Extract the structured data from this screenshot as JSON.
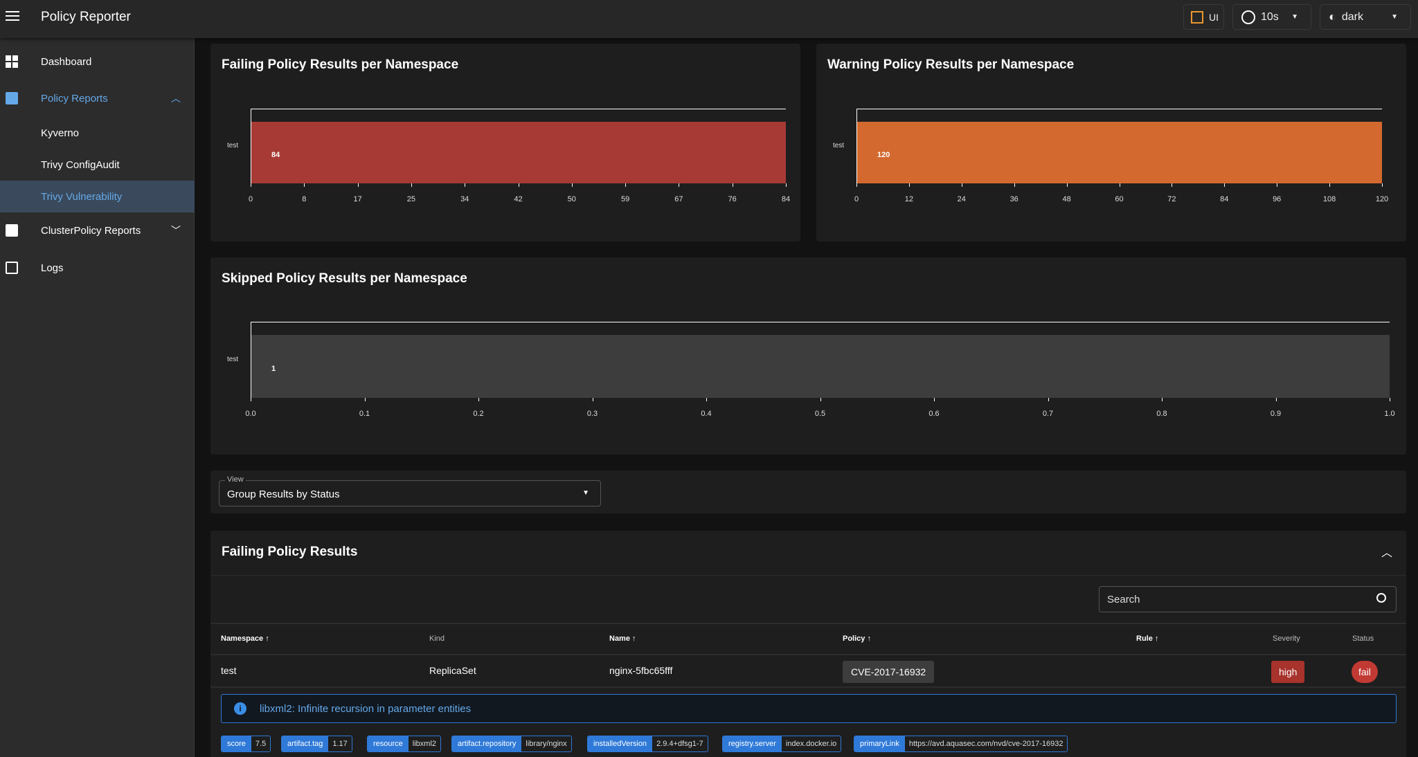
{
  "header": {
    "title": "Policy Reporter",
    "ui_label": "UI",
    "interval": "10s",
    "theme": "dark"
  },
  "sidebar": {
    "items": [
      {
        "label": "Dashboard",
        "icon": "dashboard-icon"
      },
      {
        "label": "Policy Reports",
        "icon": "report-icon",
        "expanded": true
      },
      {
        "label": "Kyverno"
      },
      {
        "label": "Trivy ConfigAudit"
      },
      {
        "label": "Trivy Vulnerability",
        "selected": true
      },
      {
        "label": "ClusterPolicy Reports",
        "icon": "report-icon",
        "expanded": false
      },
      {
        "label": "Logs",
        "icon": "terminal-icon"
      }
    ]
  },
  "chart_data": [
    {
      "type": "bar",
      "orientation": "horizontal",
      "title": "Failing Policy Results per Namespace",
      "categories": [
        "test"
      ],
      "values": [
        84
      ],
      "xlim": [
        0,
        84
      ],
      "xticks": [
        "0",
        "8",
        "17",
        "25",
        "34",
        "42",
        "50",
        "59",
        "67",
        "76",
        "84"
      ],
      "color": "#a83a35"
    },
    {
      "type": "bar",
      "orientation": "horizontal",
      "title": "Warning Policy Results per Namespace",
      "categories": [
        "test"
      ],
      "values": [
        120
      ],
      "xlim": [
        0,
        120
      ],
      "xticks": [
        "0",
        "12",
        "24",
        "36",
        "48",
        "60",
        "72",
        "84",
        "96",
        "108",
        "120"
      ],
      "color": "#d4692f"
    },
    {
      "type": "bar",
      "orientation": "horizontal",
      "title": "Skipped Policy Results per Namespace",
      "categories": [
        "test"
      ],
      "values": [
        1
      ],
      "xlim": [
        0,
        1
      ],
      "xticks": [
        "0.0",
        "0.1",
        "0.2",
        "0.3",
        "0.4",
        "0.5",
        "0.6",
        "0.7",
        "0.8",
        "0.9",
        "1.0"
      ],
      "color": "#3d3d3d"
    }
  ],
  "view": {
    "label": "View",
    "value": "Group Results by Status"
  },
  "results": {
    "title": "Failing Policy Results",
    "search_placeholder": "Search",
    "columns": [
      "Namespace",
      "Kind",
      "Name",
      "Policy",
      "Rule",
      "Severity",
      "Status"
    ],
    "row": {
      "namespace": "test",
      "kind": "ReplicaSet",
      "name": "nginx-5fbc65fff",
      "policy": "CVE-2017-16932",
      "rule": "",
      "severity": "high",
      "status": "fail"
    },
    "message": "libxml2: Infinite recursion in parameter entities",
    "properties": [
      {
        "key": "score",
        "value": "7.5"
      },
      {
        "key": "artifact.tag",
        "value": "1.17"
      },
      {
        "key": "resource",
        "value": "libxml2"
      },
      {
        "key": "artifact.repository",
        "value": "library/nginx"
      },
      {
        "key": "installedVersion",
        "value": "2.9.4+dfsg1-7"
      },
      {
        "key": "registry.server",
        "value": "index.docker.io"
      },
      {
        "key": "primaryLink",
        "value": "https://avd.aquasec.com/nvd/cve-2017-16932"
      }
    ]
  }
}
